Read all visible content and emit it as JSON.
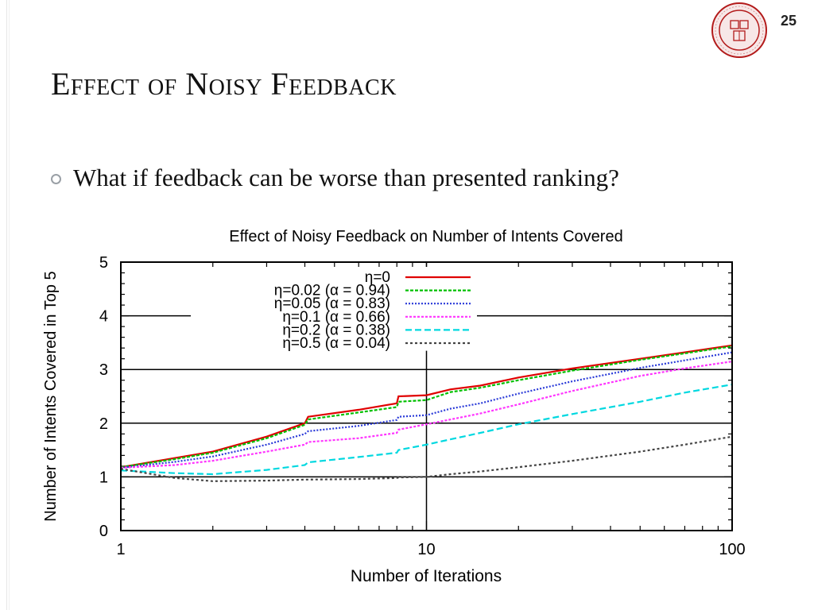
{
  "slide": {
    "page_number": "25",
    "title": "Effect of Noisy Feedback",
    "bullets": [
      "What if feedback can be worse than presented ranking?"
    ],
    "logo": "cornell-university-seal"
  },
  "chart_data": {
    "type": "line",
    "title": "Effect of Noisy Feedback on Number of Intents Covered",
    "xlabel": "Number of Iterations",
    "ylabel": "Number of Intents Covered in Top 5",
    "xscale": "log",
    "xlim": [
      1,
      100
    ],
    "ylim": [
      0,
      5
    ],
    "xticks": [
      "1",
      "10",
      "100"
    ],
    "yticks": [
      "0",
      "1",
      "2",
      "3",
      "4",
      "5"
    ],
    "grid": true,
    "legend_position": "top-left",
    "x": [
      1,
      1.5,
      2,
      3,
      4,
      4.1,
      6,
      8,
      8.1,
      10,
      12,
      15,
      20,
      30,
      50,
      70,
      100
    ],
    "series": [
      {
        "name": "η=0",
        "color": "#e00000",
        "dash": "",
        "values": [
          1.18,
          1.35,
          1.47,
          1.75,
          2.0,
          2.12,
          2.25,
          2.37,
          2.5,
          2.52,
          2.63,
          2.7,
          2.85,
          3.02,
          3.2,
          3.32,
          3.45
        ]
      },
      {
        "name": "η=0.02 (α = 0.94)",
        "color": "#00c000",
        "dash": "4,2",
        "values": [
          1.18,
          1.33,
          1.45,
          1.72,
          1.97,
          2.07,
          2.2,
          2.3,
          2.4,
          2.43,
          2.58,
          2.66,
          2.8,
          2.98,
          3.18,
          3.3,
          3.43
        ]
      },
      {
        "name": "η=0.05 (α = 0.83)",
        "color": "#2a3ad8",
        "dash": "2,2",
        "values": [
          1.17,
          1.28,
          1.38,
          1.6,
          1.8,
          1.85,
          1.95,
          2.06,
          2.12,
          2.15,
          2.27,
          2.37,
          2.55,
          2.78,
          3.03,
          3.17,
          3.32
        ]
      },
      {
        "name": "η=0.1 (α = 0.66)",
        "color": "#ff33ff",
        "dash": "3,2",
        "values": [
          1.17,
          1.22,
          1.3,
          1.47,
          1.6,
          1.65,
          1.72,
          1.82,
          1.88,
          1.98,
          2.07,
          2.18,
          2.35,
          2.6,
          2.88,
          3.02,
          3.15
        ]
      },
      {
        "name": "η=0.2 (α = 0.38)",
        "color": "#00d8e0",
        "dash": "8,4",
        "values": [
          1.12,
          1.07,
          1.05,
          1.13,
          1.22,
          1.27,
          1.37,
          1.45,
          1.5,
          1.6,
          1.7,
          1.82,
          1.98,
          2.17,
          2.4,
          2.57,
          2.72
        ]
      },
      {
        "name": "η=0.5 (α = 0.04)",
        "color": "#444444",
        "dash": "3,3",
        "values": [
          1.15,
          0.98,
          0.92,
          0.93,
          0.95,
          0.95,
          0.96,
          0.98,
          0.99,
          1.0,
          1.05,
          1.1,
          1.18,
          1.3,
          1.47,
          1.6,
          1.75
        ]
      }
    ]
  }
}
